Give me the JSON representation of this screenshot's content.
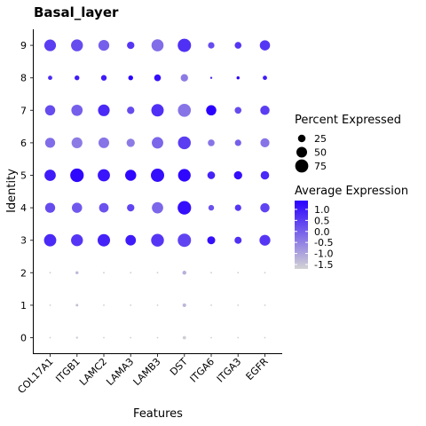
{
  "chart_data": {
    "type": "dotplot",
    "title": "Basal_layer",
    "xlabel": "Features",
    "ylabel": "Identity",
    "features": [
      "COL17A1",
      "ITGB1",
      "LAMC2",
      "LAMA3",
      "LAMB3",
      "DST",
      "ITGA6",
      "ITGA3",
      "EGFR"
    ],
    "identities": [
      "0",
      "1",
      "2",
      "3",
      "4",
      "5",
      "6",
      "7",
      "8",
      "9"
    ],
    "percent_expressed": [
      [
        1,
        2,
        1,
        1,
        1,
        5,
        1,
        1,
        1
      ],
      [
        1,
        3,
        1,
        1,
        1,
        6,
        1,
        1,
        1
      ],
      [
        1,
        4,
        1,
        1,
        1,
        7,
        1,
        1,
        1
      ],
      [
        66,
        62,
        68,
        48,
        72,
        78,
        28,
        22,
        52
      ],
      [
        44,
        46,
        40,
        24,
        56,
        80,
        14,
        18,
        38
      ],
      [
        56,
        80,
        66,
        54,
        78,
        70,
        26,
        30,
        32
      ],
      [
        44,
        52,
        50,
        30,
        58,
        72,
        20,
        18,
        36
      ],
      [
        46,
        56,
        60,
        24,
        68,
        74,
        46,
        20,
        38
      ],
      [
        8,
        10,
        14,
        10,
        20,
        24,
        2,
        4,
        8
      ],
      [
        60,
        62,
        52,
        24,
        64,
        78,
        18,
        20,
        46
      ]
    ],
    "average_expression": [
      [
        -1.6,
        -1.6,
        -1.6,
        -1.6,
        -1.6,
        -1.6,
        -1.6,
        -1.6,
        -1.6
      ],
      [
        -1.6,
        -1.4,
        -1.6,
        -1.6,
        -1.6,
        -1.3,
        -1.6,
        -1.6,
        -1.6
      ],
      [
        -1.6,
        -1.3,
        -1.6,
        -1.6,
        -1.6,
        -1.2,
        -1.6,
        -1.6,
        -1.6
      ],
      [
        0.8,
        0.6,
        0.9,
        1.0,
        0.6,
        0.4,
        1.2,
        0.7,
        0.6
      ],
      [
        0.3,
        0.1,
        0.2,
        0.4,
        -0.1,
        1.2,
        0.2,
        0.6,
        0.4
      ],
      [
        1.0,
        1.3,
        1.1,
        1.3,
        1.2,
        1.3,
        0.9,
        1.2,
        0.8
      ],
      [
        -0.2,
        -0.4,
        -0.3,
        -0.4,
        -0.1,
        0.5,
        -0.3,
        0.0,
        -0.3
      ],
      [
        0.3,
        0.0,
        0.8,
        0.3,
        0.7,
        -0.3,
        1.4,
        0.3,
        0.5
      ],
      [
        0.8,
        1.0,
        1.0,
        1.5,
        1.2,
        -0.4,
        0.8,
        1.4,
        1.0
      ],
      [
        0.5,
        0.3,
        0.0,
        0.6,
        -0.2,
        0.7,
        0.3,
        0.6,
        0.6
      ]
    ],
    "legend_size": {
      "title": "Percent Expressed",
      "labels": [
        "25",
        "50",
        "75"
      ],
      "values": [
        25,
        50,
        75
      ]
    },
    "legend_color": {
      "title": "Average Expression",
      "labels": [
        "1.0",
        "0.5",
        "0.0",
        "-0.5",
        "-1.0",
        "-1.5"
      ],
      "values": [
        1.0,
        0.5,
        0.0,
        -0.5,
        -1.0,
        -1.5
      ],
      "range": [
        -1.7,
        1.4
      ],
      "low_color": "#d3d3d3",
      "high_color": "#2a00ff"
    },
    "legend_placement": "right",
    "grid": false
  }
}
